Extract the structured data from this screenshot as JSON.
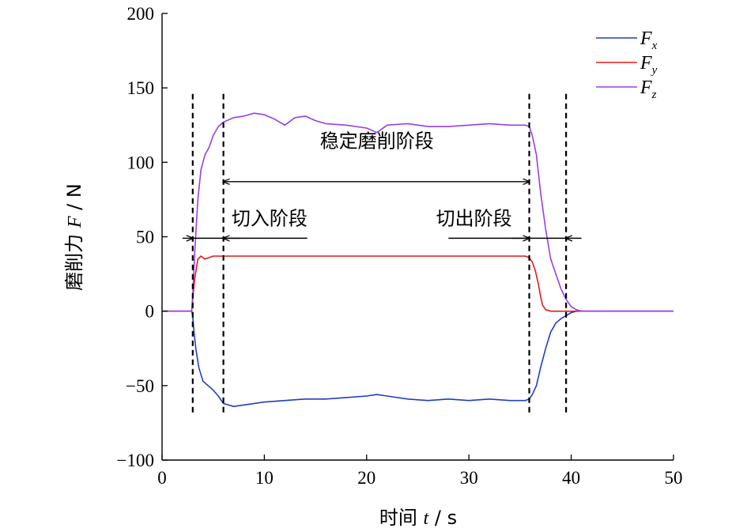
{
  "chart_data": {
    "type": "line",
    "title": "",
    "xlabel": {
      "prefix": "时间 ",
      "var": "t",
      "suffix": " / s"
    },
    "ylabel": {
      "prefix": "磨削力 ",
      "var": "F",
      "suffix": " / N"
    },
    "xlim": [
      0,
      50
    ],
    "ylim": [
      -100,
      200
    ],
    "xticks": [
      0,
      10,
      20,
      30,
      40,
      50
    ],
    "yticks": [
      -100,
      -50,
      0,
      50,
      100,
      150,
      200
    ],
    "xtick_labels": [
      "0",
      "10",
      "20",
      "30",
      "40",
      "50"
    ],
    "ytick_labels": [
      "−100",
      "−50",
      "0",
      "50",
      "100",
      "150",
      "200"
    ],
    "grid": false,
    "legend": "top-right",
    "series": [
      {
        "name": "Fx",
        "label_base": "F",
        "label_sub": "x",
        "color": "#1f3fbf",
        "x": [
          0,
          2.9,
          3.0,
          3.1,
          3.3,
          3.6,
          4,
          4.5,
          5,
          5.5,
          6,
          7,
          8,
          9,
          10,
          12,
          14,
          16,
          18,
          20,
          21,
          22,
          24,
          26,
          28,
          30,
          32,
          34,
          35.5,
          35.9,
          36.2,
          36.6,
          37,
          37.5,
          38,
          38.5,
          39,
          39.5,
          40,
          40.5,
          41,
          45,
          50
        ],
        "y": [
          0,
          0,
          -3,
          -12,
          -25,
          -38,
          -47,
          -50,
          -53,
          -57,
          -62,
          -64,
          -63,
          -62,
          -61,
          -60,
          -59,
          -59,
          -58,
          -57,
          -56,
          -57,
          -59,
          -60,
          -59,
          -60,
          -59,
          -60,
          -60,
          -59,
          -56,
          -50,
          -38,
          -25,
          -14,
          -8,
          -5,
          -3,
          -1,
          0,
          0,
          0,
          0
        ]
      },
      {
        "name": "Fy",
        "label_base": "F",
        "label_sub": "y",
        "color": "#e11b1b",
        "x": [
          0,
          2.9,
          3.0,
          3.2,
          3.5,
          3.8,
          4.2,
          4.6,
          5,
          5.5,
          6,
          8,
          10,
          12,
          14,
          16,
          18,
          20,
          22,
          24,
          26,
          28,
          30,
          32,
          34,
          35.5,
          35.9,
          36.2,
          36.5,
          36.8,
          37.0,
          37.2,
          37.5,
          38,
          39,
          40,
          45,
          50
        ],
        "y": [
          0,
          0,
          8,
          22,
          35,
          37,
          35,
          36,
          37,
          37,
          37,
          37,
          37,
          37,
          37,
          37,
          37,
          37,
          37,
          37,
          37,
          37,
          37,
          37,
          37,
          37,
          36,
          33,
          27,
          18,
          10,
          4,
          1,
          0,
          0,
          0,
          0,
          0
        ]
      },
      {
        "name": "Fz",
        "label_base": "F",
        "label_sub": "z",
        "color": "#9b3ee0",
        "x": [
          0,
          2.9,
          3.0,
          3.2,
          3.5,
          3.8,
          4.2,
          4.6,
          5,
          5.5,
          6,
          7,
          8,
          9,
          10,
          11,
          12,
          13,
          14,
          15,
          16,
          18,
          20,
          21,
          22,
          24,
          26,
          28,
          30,
          32,
          34,
          35.5,
          35.9,
          36.2,
          36.6,
          37,
          37.5,
          38,
          38.5,
          39,
          39.5,
          40,
          40.5,
          41,
          45,
          50
        ],
        "y": [
          0,
          0,
          10,
          40,
          75,
          95,
          105,
          110,
          118,
          124,
          127,
          130,
          131,
          133,
          132,
          129,
          125,
          130,
          131,
          128,
          126,
          125,
          123,
          120,
          125,
          126,
          124,
          124,
          125,
          126,
          125,
          125,
          124,
          118,
          105,
          80,
          55,
          35,
          25,
          15,
          8,
          3,
          1,
          0,
          0,
          0
        ]
      }
    ],
    "vlines": [
      3.0,
      6.0,
      35.9,
      39.5
    ],
    "annotations": [
      {
        "text": "稳定磨削阶段",
        "x": 21,
        "y": 110
      },
      {
        "text": "切入阶段",
        "x": 10.5,
        "y": 58
      },
      {
        "text": "切出阶段",
        "x": 30.5,
        "y": 58
      }
    ]
  }
}
